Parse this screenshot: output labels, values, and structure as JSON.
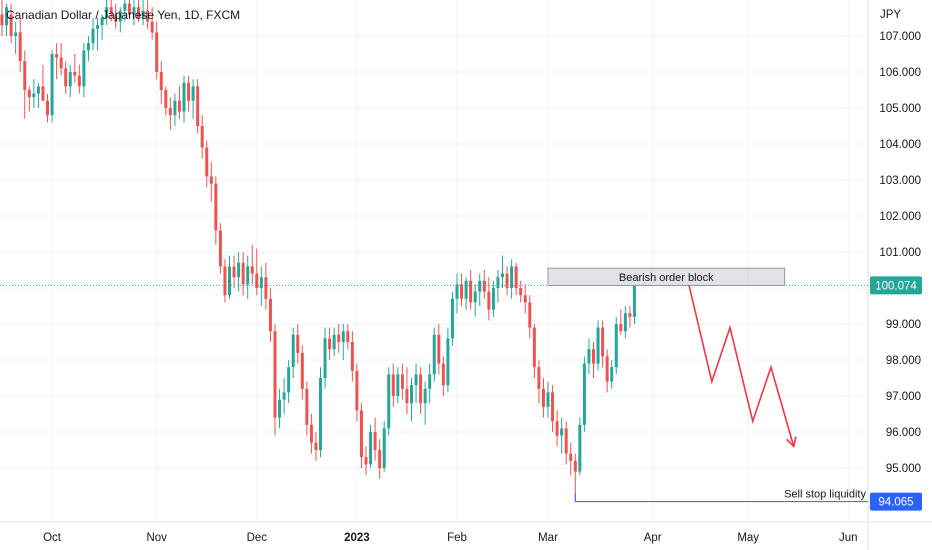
{
  "header": {
    "title": "Canadian Dollar / Japanese Yen, 1D, FXCM"
  },
  "colors": {
    "up": "#26a69a",
    "down": "#ef5350",
    "projection": "#f23645",
    "liquidity": "#2962ff",
    "grid": "#f0f3fa"
  },
  "chart_data": {
    "type": "candlestick",
    "title": "Canadian Dollar / Japanese Yen, 1D, FXCM",
    "y_unit": "JPY",
    "ylim": [
      93.5,
      108.0
    ],
    "y_ticks": [
      "107.000",
      "106.000",
      "105.000",
      "104.000",
      "103.000",
      "102.000",
      "101.000",
      "100.000",
      "99.000",
      "98.000",
      "97.000",
      "96.000",
      "95.000"
    ],
    "x_ticks": [
      {
        "label": "Oct",
        "index": 11
      },
      {
        "label": "Nov",
        "index": 34
      },
      {
        "label": "Dec",
        "index": 56
      },
      {
        "label": "2023",
        "index": 78,
        "bold": true
      },
      {
        "label": "Feb",
        "index": 100
      },
      {
        "label": "Mar",
        "index": 120
      },
      {
        "label": "Apr",
        "index": 143
      },
      {
        "label": "May",
        "index": 164
      },
      {
        "label": "Jun",
        "index": 186
      }
    ],
    "last_price": "100.074",
    "liquidity_level": "94.065",
    "grid": true,
    "candles": [
      [
        107.6,
        108.0,
        107.0,
        107.3
      ],
      [
        107.3,
        107.9,
        107.0,
        107.8
      ],
      [
        107.6,
        107.9,
        106.8,
        107.0
      ],
      [
        107.0,
        107.4,
        106.5,
        107.1
      ],
      [
        107.1,
        107.5,
        106.0,
        106.3
      ],
      [
        106.3,
        106.6,
        104.7,
        105.5
      ],
      [
        105.5,
        105.6,
        104.9,
        105.3
      ],
      [
        105.3,
        105.8,
        105.0,
        105.4
      ],
      [
        105.4,
        105.7,
        105.0,
        105.6
      ],
      [
        105.6,
        106.2,
        105.3,
        105.2
      ],
      [
        105.2,
        105.4,
        104.6,
        104.8
      ],
      [
        104.8,
        106.6,
        104.6,
        106.5
      ],
      [
        106.5,
        106.8,
        105.8,
        106.4
      ],
      [
        106.4,
        106.8,
        105.9,
        106.1
      ],
      [
        106.1,
        106.3,
        105.4,
        105.6
      ],
      [
        105.6,
        106.2,
        105.3,
        106.0
      ],
      [
        106.0,
        106.5,
        105.7,
        105.9
      ],
      [
        105.9,
        106.2,
        105.4,
        105.6
      ],
      [
        105.6,
        106.8,
        105.3,
        106.6
      ],
      [
        106.6,
        107.0,
        106.3,
        106.8
      ],
      [
        106.8,
        107.5,
        106.6,
        107.2
      ],
      [
        107.2,
        107.5,
        106.6,
        107.3
      ],
      [
        107.3,
        107.6,
        106.9,
        107.5
      ],
      [
        107.5,
        108.0,
        107.3,
        107.8
      ],
      [
        107.8,
        108.0,
        107.4,
        107.6
      ],
      [
        107.6,
        107.9,
        107.2,
        107.4
      ],
      [
        107.4,
        107.8,
        107.1,
        107.7
      ],
      [
        107.7,
        108.0,
        107.4,
        107.9
      ],
      [
        107.9,
        108.0,
        107.5,
        107.6
      ],
      [
        107.6,
        108.0,
        107.3,
        107.8
      ],
      [
        107.8,
        108.0,
        107.4,
        107.5
      ],
      [
        107.5,
        108.0,
        107.3,
        107.7
      ],
      [
        107.7,
        108.0,
        107.2,
        107.4
      ],
      [
        107.4,
        107.8,
        106.9,
        107.1
      ],
      [
        107.1,
        107.4,
        105.8,
        106.0
      ],
      [
        106.0,
        106.3,
        105.1,
        105.5
      ],
      [
        105.5,
        105.6,
        104.8,
        105.0
      ],
      [
        105.0,
        105.3,
        104.4,
        104.8
      ],
      [
        104.8,
        105.4,
        104.5,
        105.2
      ],
      [
        105.2,
        105.6,
        104.7,
        104.9
      ],
      [
        104.9,
        105.9,
        104.6,
        105.7
      ],
      [
        105.7,
        105.9,
        104.9,
        105.2
      ],
      [
        105.2,
        105.8,
        104.7,
        105.6
      ],
      [
        105.6,
        105.8,
        104.3,
        104.5
      ],
      [
        104.5,
        104.8,
        103.6,
        103.9
      ],
      [
        103.9,
        104.1,
        102.8,
        103.1
      ],
      [
        103.1,
        103.5,
        102.4,
        102.9
      ],
      [
        102.9,
        103.1,
        101.2,
        101.6
      ],
      [
        101.6,
        101.8,
        100.4,
        100.6
      ],
      [
        100.6,
        100.8,
        99.6,
        99.8
      ],
      [
        99.8,
        100.9,
        99.7,
        100.6
      ],
      [
        100.6,
        100.9,
        100.0,
        100.3
      ],
      [
        100.3,
        101.0,
        99.9,
        100.7
      ],
      [
        100.7,
        101.0,
        99.8,
        100.1
      ],
      [
        100.1,
        100.9,
        99.7,
        100.6
      ],
      [
        100.6,
        101.2,
        100.1,
        100.4
      ],
      [
        100.4,
        101.1,
        99.8,
        100.0
      ],
      [
        100.0,
        100.6,
        99.5,
        100.3
      ],
      [
        100.3,
        100.7,
        99.4,
        99.7
      ],
      [
        99.7,
        100.0,
        98.5,
        98.8
      ],
      [
        98.8,
        99.0,
        95.9,
        96.4
      ],
      [
        96.4,
        97.2,
        96.1,
        96.9
      ],
      [
        96.9,
        97.5,
        96.5,
        97.1
      ],
      [
        97.1,
        98.0,
        96.8,
        97.8
      ],
      [
        97.8,
        98.9,
        97.5,
        98.7
      ],
      [
        98.7,
        99.0,
        97.9,
        98.2
      ],
      [
        98.2,
        98.4,
        96.9,
        97.2
      ],
      [
        97.2,
        97.4,
        95.9,
        96.2
      ],
      [
        96.2,
        96.5,
        95.4,
        95.7
      ],
      [
        95.7,
        96.0,
        95.2,
        95.5
      ],
      [
        95.5,
        97.8,
        95.3,
        97.5
      ],
      [
        97.5,
        98.9,
        97.2,
        98.6
      ],
      [
        98.6,
        98.9,
        98.0,
        98.3
      ],
      [
        98.3,
        98.9,
        98.1,
        98.7
      ],
      [
        98.7,
        99.0,
        98.2,
        98.5
      ],
      [
        98.5,
        99.0,
        98.0,
        98.8
      ],
      [
        98.8,
        99.0,
        98.3,
        98.5
      ],
      [
        98.5,
        98.8,
        97.4,
        97.7
      ],
      [
        97.7,
        97.9,
        96.3,
        96.6
      ],
      [
        96.6,
        96.8,
        95.0,
        95.3
      ],
      [
        95.3,
        95.6,
        94.8,
        95.1
      ],
      [
        95.1,
        96.2,
        95.0,
        96.0
      ],
      [
        96.0,
        96.4,
        95.2,
        95.5
      ],
      [
        95.5,
        95.8,
        94.7,
        95.0
      ],
      [
        95.0,
        96.3,
        94.9,
        96.1
      ],
      [
        96.1,
        97.8,
        95.9,
        97.6
      ],
      [
        97.6,
        97.9,
        96.7,
        97.0
      ],
      [
        97.0,
        97.8,
        96.8,
        97.6
      ],
      [
        97.6,
        97.9,
        96.9,
        97.2
      ],
      [
        97.2,
        97.8,
        96.5,
        96.8
      ],
      [
        96.8,
        97.5,
        96.3,
        97.3
      ],
      [
        97.3,
        97.9,
        96.8,
        97.6
      ],
      [
        97.6,
        97.8,
        96.5,
        96.8
      ],
      [
        96.8,
        97.4,
        96.2,
        97.2
      ],
      [
        97.2,
        97.9,
        96.8,
        97.6
      ],
      [
        97.6,
        98.9,
        97.4,
        98.7
      ],
      [
        98.7,
        99.0,
        97.6,
        97.9
      ],
      [
        97.9,
        98.1,
        97.0,
        97.3
      ],
      [
        97.3,
        98.9,
        97.1,
        98.6
      ],
      [
        98.6,
        99.9,
        98.4,
        99.7
      ],
      [
        99.7,
        100.4,
        99.3,
        100.1
      ],
      [
        100.1,
        100.4,
        99.5,
        99.7
      ],
      [
        99.7,
        100.3,
        99.4,
        100.2
      ],
      [
        100.2,
        100.5,
        99.4,
        99.6
      ],
      [
        99.6,
        100.1,
        99.2,
        99.9
      ],
      [
        99.9,
        100.4,
        99.5,
        100.2
      ],
      [
        100.2,
        100.5,
        99.7,
        99.9
      ],
      [
        99.9,
        100.3,
        99.1,
        99.4
      ],
      [
        99.4,
        100.2,
        99.2,
        100.0
      ],
      [
        100.0,
        100.5,
        99.6,
        100.3
      ],
      [
        100.3,
        100.9,
        100.0,
        100.4
      ],
      [
        100.4,
        100.6,
        99.8,
        100.0
      ],
      [
        100.0,
        100.8,
        99.7,
        100.6
      ],
      [
        100.6,
        100.7,
        99.8,
        100.0
      ],
      [
        100.0,
        100.2,
        99.6,
        99.8
      ],
      [
        99.8,
        100.1,
        99.3,
        99.6
      ],
      [
        99.6,
        99.8,
        98.6,
        98.9
      ],
      [
        98.9,
        99.0,
        97.5,
        97.8
      ],
      [
        97.8,
        98.0,
        96.8,
        97.2
      ],
      [
        97.2,
        97.5,
        96.4,
        96.7
      ],
      [
        96.7,
        97.4,
        96.4,
        97.1
      ],
      [
        97.1,
        97.3,
        96.0,
        96.3
      ],
      [
        96.3,
        96.6,
        95.6,
        95.9
      ],
      [
        95.9,
        96.4,
        95.4,
        96.1
      ],
      [
        96.1,
        96.3,
        95.1,
        95.4
      ],
      [
        95.4,
        95.7,
        94.8,
        95.2
      ],
      [
        95.2,
        95.4,
        94.065,
        94.9
      ],
      [
        94.9,
        96.4,
        94.8,
        96.2
      ],
      [
        96.2,
        98.1,
        96.0,
        97.9
      ],
      [
        97.9,
        98.6,
        97.6,
        98.3
      ],
      [
        98.3,
        98.5,
        97.5,
        97.9
      ],
      [
        97.9,
        99.1,
        97.7,
        98.9
      ],
      [
        98.9,
        99.1,
        97.8,
        98.1
      ],
      [
        98.1,
        98.3,
        97.1,
        97.4
      ],
      [
        97.4,
        98.0,
        97.2,
        97.8
      ],
      [
        97.8,
        99.2,
        97.6,
        99.0
      ],
      [
        99.0,
        99.4,
        98.7,
        98.8
      ],
      [
        98.8,
        99.5,
        98.6,
        99.3
      ],
      [
        99.3,
        99.5,
        98.9,
        99.2
      ],
      [
        99.2,
        100.074,
        99.0,
        100.074
      ]
    ],
    "annotations": [
      {
        "type": "box",
        "label": "Bearish order block",
        "x0_index": 120,
        "x1_index": 172,
        "y_low": 100.07,
        "y_high": 100.55
      },
      {
        "type": "path",
        "label": "projected move",
        "points": [
          [
            151,
            100.07
          ],
          [
            156,
            97.4
          ],
          [
            160,
            98.9
          ],
          [
            165,
            96.3
          ],
          [
            169,
            97.8
          ],
          [
            174,
            95.6
          ]
        ]
      },
      {
        "type": "level",
        "label": "Sell stop liquidity",
        "value": 94.065,
        "from_index": 126
      }
    ]
  }
}
